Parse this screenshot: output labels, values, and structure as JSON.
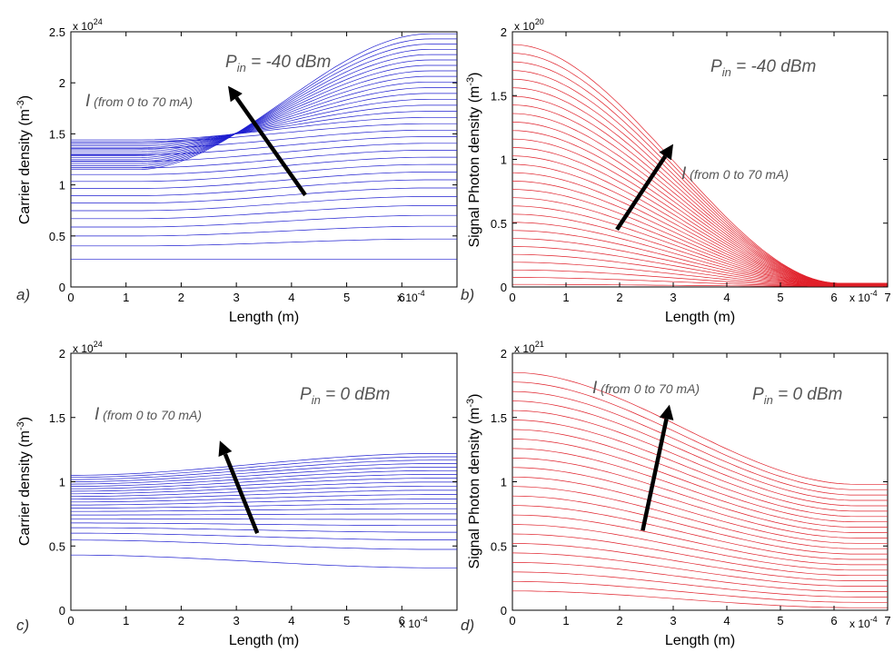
{
  "chart_data": [
    {
      "id": "a",
      "type": "line",
      "panel_label": "a)",
      "xlabel": "Length (m)",
      "ylabel_text": "Carrier density (m",
      "ylabel_sup": "-3",
      "ylabel_close": ")",
      "x_exponent": "x 10",
      "x_exponent_power": "-4",
      "y_exponent": "x 10",
      "y_exponent_power": "24",
      "xlim": [
        0,
        7
      ],
      "ylim": [
        0,
        2.5
      ],
      "xticks": [
        "0",
        "1",
        "2",
        "3",
        "4",
        "5",
        "6"
      ],
      "yticks": [
        "0",
        "0.5",
        "1",
        "1.5",
        "2",
        "2.5"
      ],
      "color": "#1f1fd0",
      "grid": false,
      "annotation_power_main": "P",
      "annotation_power_sub": "in",
      "annotation_power_value": " = -40 dBm",
      "annotation_current_main": "I",
      "annotation_current_detail": " (from 0 to 70 mA)",
      "curve_count": 32,
      "curve_model": {
        "start_min": 0.27,
        "start_max": 1.45,
        "start_low_high_current": 1.15,
        "end_min": 0.27,
        "end_max": 2.48
      },
      "arrow": {
        "from": [
          4.25,
          0.9
        ],
        "to": [
          2.85,
          1.97
        ]
      }
    },
    {
      "id": "b",
      "type": "line",
      "panel_label": "b)",
      "xlabel": "Length (m)",
      "ylabel_text": "Signal Photon density (m",
      "ylabel_sup": "-3",
      "ylabel_close": ")",
      "x_exponent": "x 10",
      "x_exponent_power": "-4",
      "y_exponent": "x 10",
      "y_exponent_power": "20",
      "xlim": [
        0,
        7
      ],
      "ylim": [
        0,
        2
      ],
      "xticks": [
        "0",
        "1",
        "2",
        "3",
        "4",
        "5",
        "6",
        "7"
      ],
      "yticks": [
        "0",
        "0.5",
        "1",
        "1.5",
        "2"
      ],
      "color": "#e0202a",
      "grid": false,
      "annotation_power_main": "P",
      "annotation_power_sub": "in",
      "annotation_power_value": " = -40 dBm",
      "annotation_current_main": "I",
      "annotation_current_detail": " (from 0 to 70 mA)",
      "curve_count": 30,
      "curve_model": {
        "start_min": 0.02,
        "start_max": 1.9,
        "end_min": 0.005,
        "end_max": 0.03
      },
      "arrow": {
        "from": [
          1.95,
          0.45
        ],
        "to": [
          3.0,
          1.12
        ]
      }
    },
    {
      "id": "c",
      "type": "line",
      "panel_label": "c)",
      "xlabel": "Length (m)",
      "ylabel_text": "Carrier density (m",
      "ylabel_sup": "-3",
      "ylabel_close": ")",
      "x_exponent": "x 10",
      "x_exponent_power": "-4",
      "y_exponent": "x 10",
      "y_exponent_power": "24",
      "xlim": [
        0,
        7
      ],
      "ylim": [
        0,
        2
      ],
      "xticks": [
        "0",
        "1",
        "2",
        "3",
        "4",
        "5",
        "6"
      ],
      "yticks": [
        "0",
        "0.5",
        "1",
        "1.5",
        "2"
      ],
      "color": "#1f1fd0",
      "grid": false,
      "annotation_power_main": "P",
      "annotation_power_sub": "in",
      "annotation_power_value": " = 0 dBm",
      "annotation_current_main": "I",
      "annotation_current_detail": " (from 0 to 70 mA)",
      "curve_count": 22,
      "curve_model": {
        "start_min": 0.43,
        "start_max": 1.05,
        "end_min": 0.33,
        "end_max": 1.22
      },
      "arrow": {
        "from": [
          3.38,
          0.6
        ],
        "to": [
          2.7,
          1.32
        ]
      }
    },
    {
      "id": "d",
      "type": "line",
      "panel_label": "d)",
      "xlabel": "Length (m)",
      "ylabel_text": "Signal Photon density (m",
      "ylabel_sup": "-3",
      "ylabel_close": ")",
      "x_exponent": "x 10",
      "x_exponent_power": "-4",
      "y_exponent": "x 10",
      "y_exponent_power": "21",
      "xlim": [
        0,
        7
      ],
      "ylim": [
        0,
        2
      ],
      "xticks": [
        "0",
        "1",
        "2",
        "3",
        "4",
        "5",
        "6",
        "7"
      ],
      "yticks": [
        "0",
        "0.5",
        "1",
        "1.5",
        "2"
      ],
      "color": "#e0202a",
      "grid": false,
      "annotation_power_main": "P",
      "annotation_power_sub": "in",
      "annotation_power_value": " = 0 dBm",
      "annotation_current_main": "I",
      "annotation_current_detail": " (from 0 to 70 mA)",
      "curve_count": 24,
      "curve_model": {
        "start_min": 0.15,
        "start_max": 1.85,
        "end_min": 0.02,
        "end_max": 0.98
      },
      "arrow": {
        "from": [
          2.43,
          0.62
        ],
        "to": [
          2.93,
          1.6
        ]
      }
    }
  ]
}
